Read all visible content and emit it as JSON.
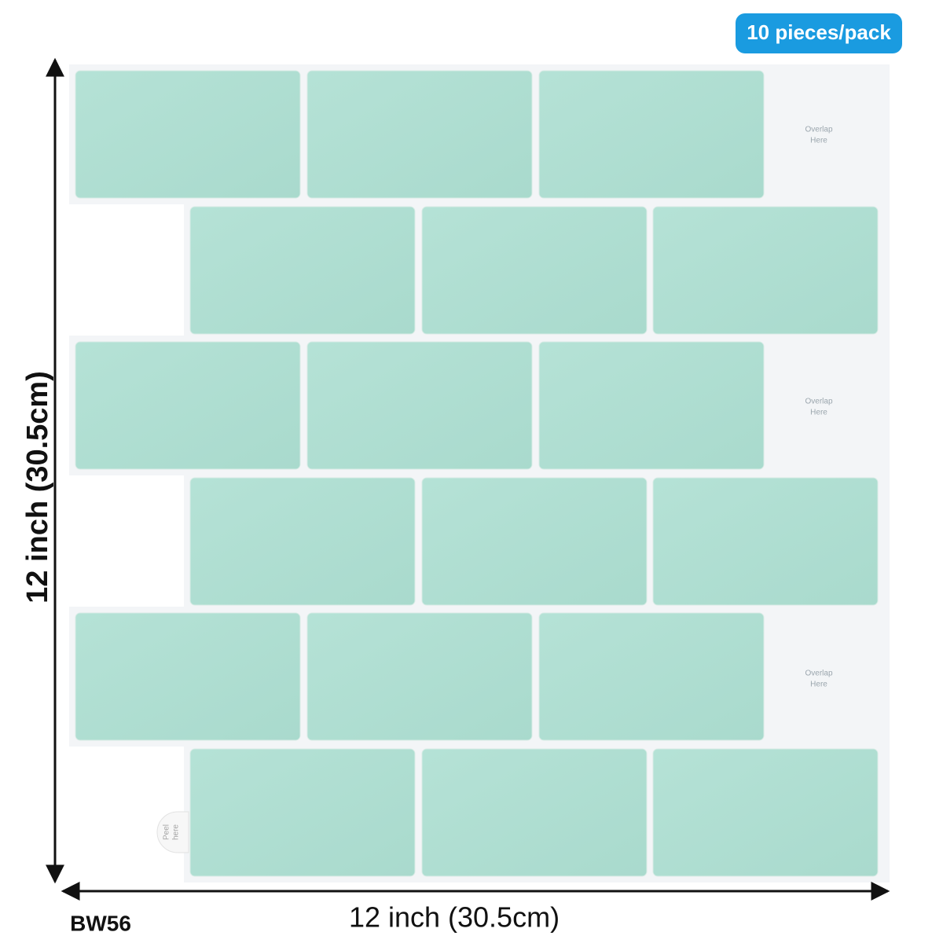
{
  "badge": "10 pieces/pack",
  "height_label": "12 inch (30.5cm)",
  "width_label": "12 inch (30.5cm)",
  "model": "BW56",
  "overlap_labels": [
    [
      "Overlap",
      "Here"
    ],
    [
      "Overlap",
      "Here"
    ],
    [
      "Overlap",
      "Here"
    ]
  ],
  "peel_label": [
    "Peel",
    "here"
  ]
}
